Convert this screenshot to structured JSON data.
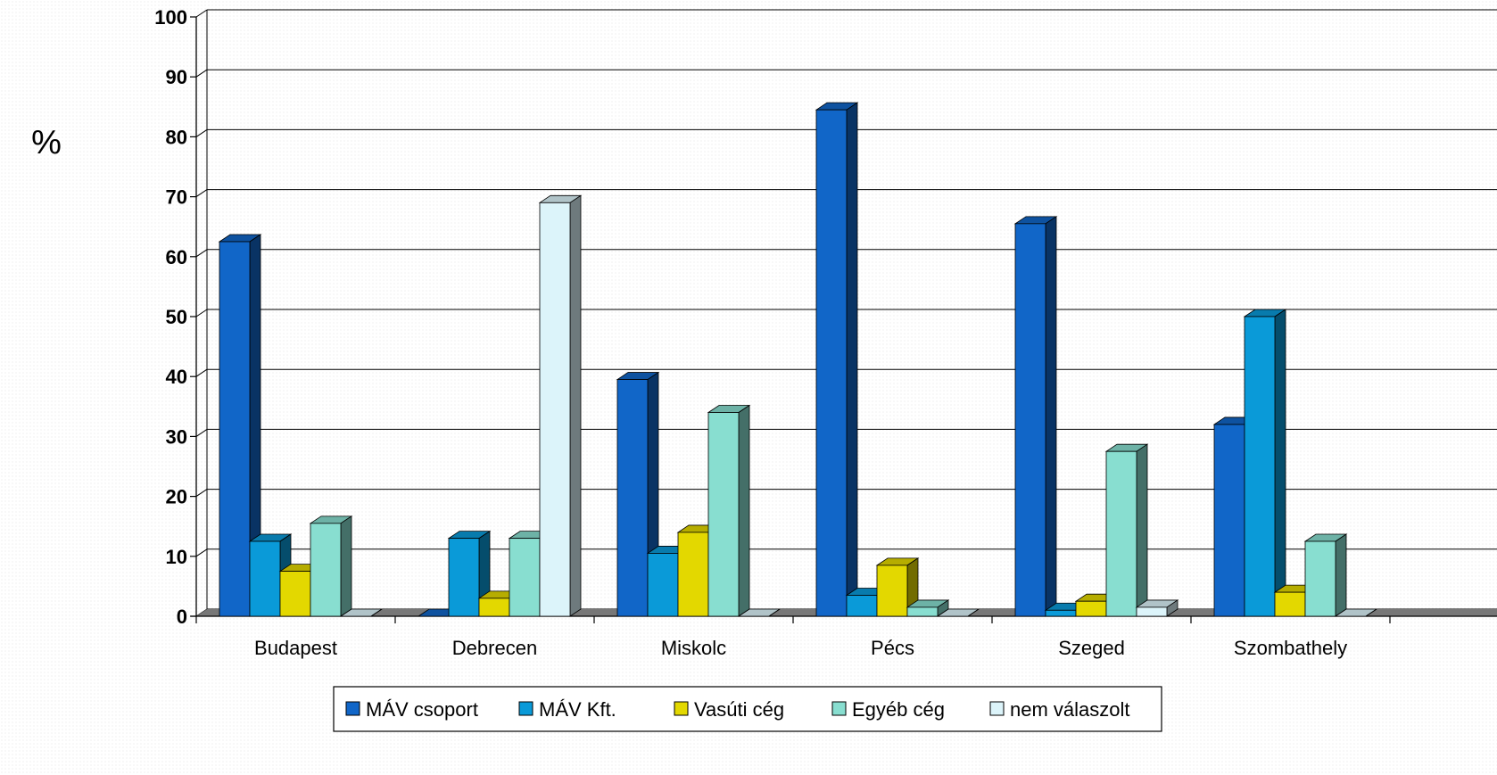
{
  "chart_data": {
    "type": "bar",
    "style": "3d-clustered",
    "unit_label": "%",
    "ylim": [
      0,
      100
    ],
    "yticks": [
      0,
      10,
      20,
      30,
      40,
      50,
      60,
      70,
      80,
      90,
      100
    ],
    "ytick_labels": [
      "0",
      "10",
      "20",
      "30",
      "40",
      "50",
      "60",
      "70",
      "80",
      "90",
      "100"
    ],
    "grid": true,
    "legend_position": "bottom",
    "categories": [
      "Budapest",
      "Debrecen",
      "Miskolc",
      "Pécs",
      "Szeged",
      "Szombathely"
    ],
    "series": [
      {
        "name": "MÁV csoport",
        "color": "#1166c8",
        "values": [
          62.5,
          0,
          39.5,
          84.5,
          65.5,
          32
        ]
      },
      {
        "name": "MÁV Kft.",
        "color": "#0a9ad8",
        "values": [
          12.5,
          13,
          10.5,
          3.5,
          1,
          50
        ]
      },
      {
        "name": "Vasúti cég",
        "color": "#e3d800",
        "values": [
          7.5,
          3,
          14,
          8.5,
          2.5,
          4
        ]
      },
      {
        "name": "Egyéb cég",
        "color": "#88ded0",
        "values": [
          15.5,
          13,
          34,
          1.5,
          27.5,
          12.5
        ]
      },
      {
        "name": "nem válaszolt",
        "color": "#dcf4fa",
        "values": [
          0,
          69,
          0,
          0,
          1.5,
          0
        ]
      }
    ]
  }
}
